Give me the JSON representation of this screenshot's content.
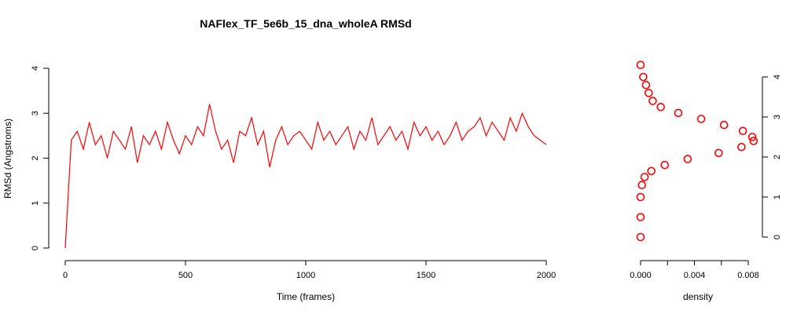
{
  "chart_data": [
    {
      "type": "line",
      "title": "NAFlex_TF_5e6b_15_dna_wholeA RMSd",
      "xlabel": "Time (frames)",
      "ylabel": "RMSd (Angstroms)",
      "xlim": [
        0,
        2000
      ],
      "ylim": [
        0,
        4.3
      ],
      "x_ticks": [
        "0",
        "500",
        "1000",
        "1500",
        "2000"
      ],
      "y_ticks": [
        "0",
        "1",
        "2",
        "3",
        "4"
      ],
      "grid": false,
      "series_color": "#ff0000",
      "series": [
        {
          "name": "",
          "x": [
            0,
            25,
            50,
            75,
            100,
            125,
            150,
            175,
            200,
            225,
            250,
            275,
            300,
            325,
            350,
            375,
            400,
            425,
            450,
            475,
            500,
            525,
            550,
            575,
            600,
            625,
            650,
            675,
            700,
            725,
            750,
            775,
            800,
            825,
            850,
            875,
            900,
            925,
            950,
            975,
            1000,
            1025,
            1050,
            1075,
            1100,
            1125,
            1150,
            1175,
            1200,
            1225,
            1250,
            1275,
            1300,
            1325,
            1350,
            1375,
            1400,
            1425,
            1450,
            1475,
            1500,
            1525,
            1550,
            1575,
            1600,
            1625,
            1650,
            1675,
            1700,
            1725,
            1750,
            1775,
            1800,
            1825,
            1850,
            1875,
            1900,
            1925,
            1950,
            1975,
            2000
          ],
          "values": [
            0.0,
            2.4,
            2.6,
            2.2,
            2.8,
            2.3,
            2.5,
            2.0,
            2.6,
            2.4,
            2.2,
            2.7,
            1.9,
            2.5,
            2.3,
            2.6,
            2.2,
            2.8,
            2.4,
            2.1,
            2.5,
            2.3,
            2.7,
            2.5,
            3.2,
            2.6,
            2.2,
            2.4,
            1.9,
            2.6,
            2.5,
            2.9,
            2.3,
            2.6,
            1.8,
            2.4,
            2.7,
            2.3,
            2.5,
            2.6,
            2.4,
            2.2,
            2.8,
            2.4,
            2.6,
            2.3,
            2.5,
            2.7,
            2.2,
            2.6,
            2.4,
            2.9,
            2.3,
            2.5,
            2.7,
            2.4,
            2.6,
            2.2,
            2.8,
            2.5,
            2.7,
            2.4,
            2.6,
            2.3,
            2.5,
            2.8,
            2.4,
            2.6,
            2.7,
            2.9,
            2.5,
            2.8,
            2.6,
            2.4,
            2.9,
            2.6,
            3.0,
            2.7,
            2.5,
            2.4,
            2.3
          ]
        }
      ]
    },
    {
      "type": "scatter",
      "title": "",
      "xlabel": "density",
      "ylabel": "",
      "xlim": [
        0,
        0.0085
      ],
      "ylim": [
        0,
        4.3
      ],
      "x_ticks": [
        "0.000",
        "0.004",
        "0.008"
      ],
      "y_ticks": [
        "0",
        "1",
        "2",
        "3",
        "4"
      ],
      "y_axis_side": "right",
      "grid": false,
      "series_color": "#ff0000",
      "series": [
        {
          "name": "",
          "points": [
            [
              0.0,
              0.0
            ],
            [
              0.0,
              0.5
            ],
            [
              0.0,
              1.0
            ],
            [
              0.0001,
              1.3
            ],
            [
              0.0003,
              1.5
            ],
            [
              0.0008,
              1.65
            ],
            [
              0.0018,
              1.8
            ],
            [
              0.0035,
              1.95
            ],
            [
              0.0058,
              2.1
            ],
            [
              0.0075,
              2.25
            ],
            [
              0.0084,
              2.4
            ],
            [
              0.0083,
              2.5
            ],
            [
              0.0076,
              2.65
            ],
            [
              0.0062,
              2.8
            ],
            [
              0.0045,
              2.95
            ],
            [
              0.0028,
              3.1
            ],
            [
              0.0015,
              3.25
            ],
            [
              0.0009,
              3.4
            ],
            [
              0.0006,
              3.6
            ],
            [
              0.0004,
              3.8
            ],
            [
              0.0002,
              4.0
            ],
            [
              0.0,
              4.3
            ]
          ]
        }
      ]
    }
  ]
}
